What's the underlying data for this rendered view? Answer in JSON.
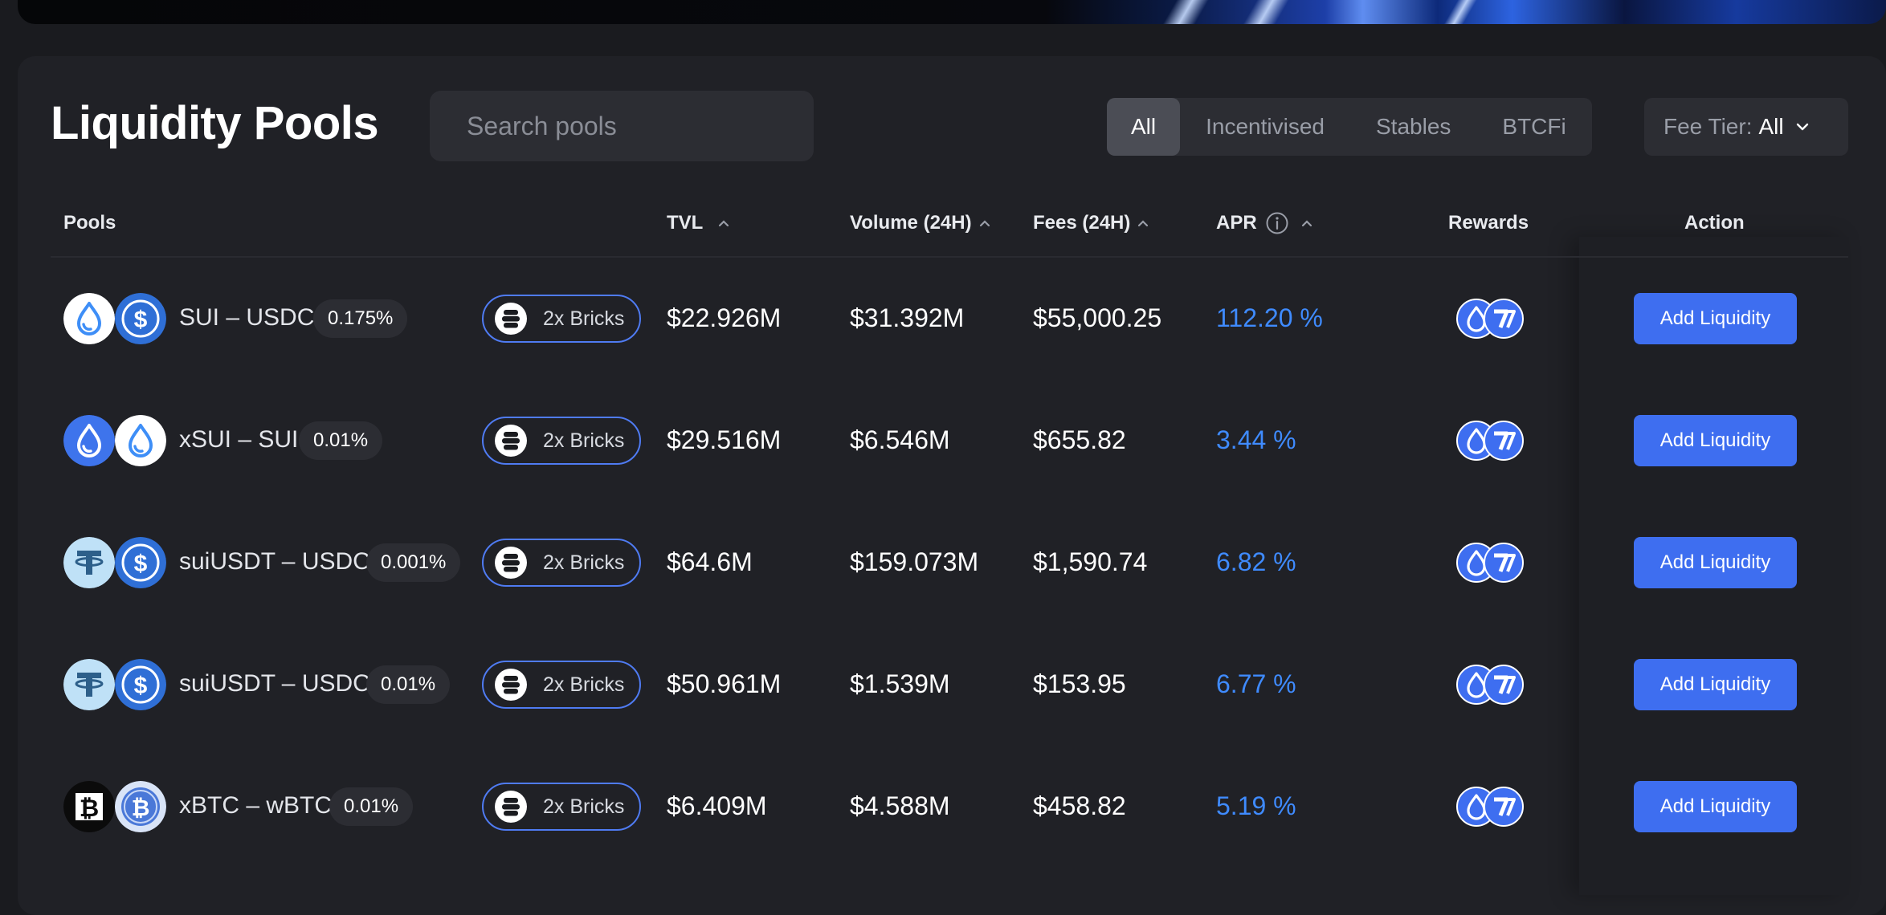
{
  "colors": {
    "background": "#1a1b1f",
    "panel": "#202126",
    "accent": "#3e6ef0",
    "apr": "#3f8bff",
    "bricks_border": "#4f7bf2"
  },
  "header": {
    "title": "Liquidity Pools",
    "search": {
      "placeholder": "Search pools",
      "value": "",
      "icon": "search-icon",
      "clear_icon": "close-icon"
    },
    "filter_tabs": [
      {
        "label": "All",
        "active": true
      },
      {
        "label": "Incentivised",
        "active": false
      },
      {
        "label": "Stables",
        "active": false
      },
      {
        "label": "BTCFi",
        "active": false
      }
    ],
    "fee_tier": {
      "label": "Fee Tier:",
      "value": "All",
      "icon": "chevron-down-icon"
    }
  },
  "table": {
    "columns": {
      "pools": "Pools",
      "tvl": "TVL",
      "volume": "Volume (24H)",
      "fees": "Fees (24H)",
      "apr": "APR",
      "rewards": "Rewards",
      "action": "Action"
    },
    "rows": [
      {
        "pair": "SUI – USDC",
        "coins": [
          "sui",
          "usdc"
        ],
        "fee_tier": "0.175%",
        "bricks": "2x Bricks",
        "tvl": "$22.926M",
        "volume": "$31.392M",
        "fees": "$55,000.25",
        "apr": "112.20 %",
        "rewards": [
          "sui",
          "wal"
        ],
        "action": "Add Liquidity"
      },
      {
        "pair": "xSUI – SUI",
        "coins": [
          "xsui",
          "sui"
        ],
        "fee_tier": "0.01%",
        "bricks": "2x Bricks",
        "tvl": "$29.516M",
        "volume": "$6.546M",
        "fees": "$655.82",
        "apr": "3.44 %",
        "rewards": [
          "sui",
          "wal"
        ],
        "action": "Add Liquidity"
      },
      {
        "pair": "suiUSDT – USDC",
        "coins": [
          "usdt",
          "usdc"
        ],
        "fee_tier": "0.001%",
        "bricks": "2x Bricks",
        "tvl": "$64.6M",
        "volume": "$159.073M",
        "fees": "$1,590.74",
        "apr": "6.82 %",
        "rewards": [
          "sui",
          "wal"
        ],
        "action": "Add Liquidity"
      },
      {
        "pair": "suiUSDT – USDC",
        "coins": [
          "usdt",
          "usdc"
        ],
        "fee_tier": "0.01%",
        "bricks": "2x Bricks",
        "tvl": "$50.961M",
        "volume": "$1.539M",
        "fees": "$153.95",
        "apr": "6.77 %",
        "rewards": [
          "sui",
          "wal"
        ],
        "action": "Add Liquidity"
      },
      {
        "pair": "xBTC – wBTC",
        "coins": [
          "xbtc",
          "wbtc"
        ],
        "fee_tier": "0.01%",
        "bricks": "2x Bricks",
        "tvl": "$6.409M",
        "volume": "$4.588M",
        "fees": "$458.82",
        "apr": "5.19 %",
        "rewards": [
          "sui",
          "wal"
        ],
        "action": "Add Liquidity"
      }
    ]
  }
}
